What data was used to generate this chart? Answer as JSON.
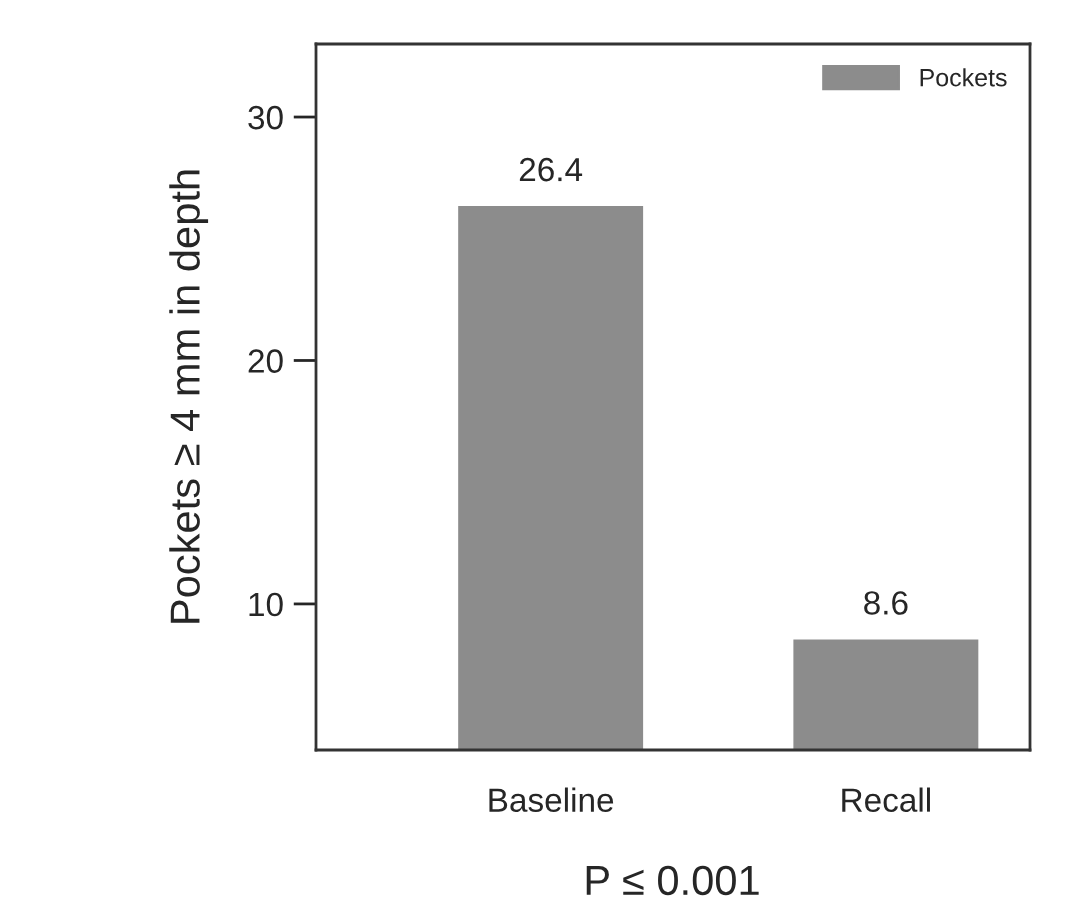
{
  "chart_data": {
    "type": "bar",
    "ylabel": "Pockets ≥ 4 mm in depth",
    "categories": [
      "Baseline",
      "Recall"
    ],
    "series": [
      {
        "name": "Pockets",
        "color": "#8c8c8c",
        "values": [
          26.4,
          8.6
        ]
      }
    ],
    "ylim": [
      4,
      33
    ],
    "yticks": [
      10,
      20,
      30
    ],
    "data_labels": true,
    "legend": "top right",
    "annotations": [
      "P ≤ 0.001"
    ]
  }
}
